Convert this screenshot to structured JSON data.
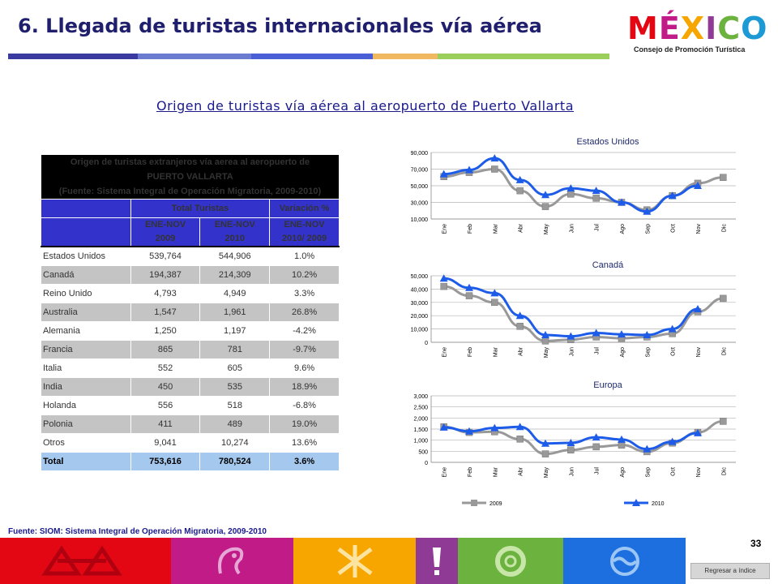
{
  "header": {
    "title": "6. Llegada de turistas internacionales vía aérea",
    "logo_word": "MÉXICO",
    "logo_sub": "Consejo de Promoción Turística",
    "logo_colors": [
      "#e30613",
      "#c11b87",
      "#f7a600",
      "#6cb23e",
      "#1d9ad6",
      "#8f3b96"
    ]
  },
  "subtitle": "Origen de turistas vía aérea al aeropuerto de Puerto Vallarta",
  "table": {
    "title_line1": "Origen de turistas extranjeros vía aerea al aeropuerto de",
    "title_line2": "PUERTO VALLARTA",
    "title_line3": "(Fuente: Sistema Integral de Operación Migratoria, 2009-2010)",
    "group_total": "Total Turistas",
    "group_var": "Variación %",
    "col1_l1": "ENE-NOV",
    "col1_l2": "2009",
    "col2_l1": "ENE-NOV",
    "col2_l2": "2010",
    "col3_l1": "ENE-NOV",
    "col3_l2": "2010/ 2009",
    "rows": [
      {
        "country": "Estados Unidos",
        "v2009": "539,764",
        "v2010": "544,906",
        "var": "1.0%"
      },
      {
        "country": "Canadá",
        "v2009": "194,387",
        "v2010": "214,309",
        "var": "10.2%"
      },
      {
        "country": "Reino Unido",
        "v2009": "4,793",
        "v2010": "4,949",
        "var": "3.3%"
      },
      {
        "country": "Australia",
        "v2009": "1,547",
        "v2010": "1,961",
        "var": "26.8%"
      },
      {
        "country": "Alemania",
        "v2009": "1,250",
        "v2010": "1,197",
        "var": "-4.2%"
      },
      {
        "country": "Francia",
        "v2009": "865",
        "v2010": "781",
        "var": "-9.7%"
      },
      {
        "country": "Italia",
        "v2009": "552",
        "v2010": "605",
        "var": "9.6%"
      },
      {
        "country": "India",
        "v2009": "450",
        "v2010": "535",
        "var": "18.9%"
      },
      {
        "country": "Holanda",
        "v2009": "556",
        "v2010": "518",
        "var": "-6.8%"
      },
      {
        "country": "Polonia",
        "v2009": "411",
        "v2010": "489",
        "var": "19.0%"
      },
      {
        "country": "Otros",
        "v2009": "9,041",
        "v2010": "10,274",
        "var": "13.6%"
      }
    ],
    "total": {
      "country": "Total",
      "v2009": "753,616",
      "v2010": "780,524",
      "var": "3.6%"
    }
  },
  "source": "Fuente: SIOM: Sistema Integral de Operación Migratoria, 2009-2010",
  "page_number": "33",
  "back_button": "Regresar a índice",
  "chart_data": [
    {
      "type": "line",
      "title": "Estados Unidos",
      "categories": [
        "Ene",
        "Feb",
        "Mar",
        "Abr",
        "May",
        "Jun",
        "Jul",
        "Ago",
        "Sep",
        "Oct",
        "Nov",
        "Dic"
      ],
      "ylim": [
        10000,
        90000
      ],
      "yticks": [
        10000,
        30000,
        50000,
        70000,
        90000
      ],
      "ytick_labels": [
        "10,000",
        "30,000",
        "50,000",
        "70,000",
        "90,000"
      ],
      "series": [
        {
          "name": "2009",
          "color": "#999999",
          "marker": "square",
          "values": [
            61000,
            66000,
            70000,
            44000,
            25000,
            40000,
            35000,
            30000,
            21000,
            38000,
            53000,
            60000
          ]
        },
        {
          "name": "2010",
          "color": "#1d5ce8",
          "marker": "triangle",
          "values": [
            64000,
            69000,
            83000,
            57000,
            39000,
            47000,
            44000,
            30000,
            19000,
            38000,
            50000,
            null
          ]
        }
      ]
    },
    {
      "type": "line",
      "title": "Canadá",
      "categories": [
        "Ene",
        "Feb",
        "Mar",
        "Abr",
        "May",
        "Jun",
        "Jul",
        "Ago",
        "Sep",
        "Oct",
        "Nov",
        "Dic"
      ],
      "ylim": [
        0,
        50000
      ],
      "yticks": [
        0,
        10000,
        20000,
        30000,
        40000,
        50000
      ],
      "ytick_labels": [
        "0",
        "10,000",
        "20,000",
        "30,000",
        "40,000",
        "50,000"
      ],
      "series": [
        {
          "name": "2009",
          "color": "#999999",
          "marker": "square",
          "values": [
            42000,
            35000,
            30000,
            12000,
            1000,
            2000,
            4000,
            3000,
            4000,
            6500,
            23000,
            33000
          ]
        },
        {
          "name": "2010",
          "color": "#1d5ce8",
          "marker": "triangle",
          "values": [
            48000,
            41000,
            37000,
            20000,
            5500,
            4500,
            7000,
            6000,
            5500,
            10000,
            25000,
            null
          ]
        }
      ]
    },
    {
      "type": "line",
      "title": "Europa",
      "categories": [
        "Ene",
        "Feb",
        "Mar",
        "Abr",
        "May",
        "Jun",
        "Jul",
        "Ago",
        "Sep",
        "Oct",
        "Nov",
        "Dic"
      ],
      "ylim": [
        0,
        3000
      ],
      "yticks": [
        0,
        500,
        1000,
        1500,
        2000,
        2500,
        3000
      ],
      "ytick_labels": [
        "0",
        "500",
        "1,000",
        "1,500",
        "2,000",
        "2,500",
        "3,000"
      ],
      "series": [
        {
          "name": "2009",
          "color": "#999999",
          "marker": "square",
          "values": [
            1600,
            1350,
            1380,
            1050,
            380,
            560,
            700,
            780,
            480,
            870,
            1350,
            1850
          ]
        },
        {
          "name": "2010",
          "color": "#1d5ce8",
          "marker": "triangle",
          "values": [
            1580,
            1400,
            1550,
            1600,
            850,
            880,
            1130,
            1030,
            600,
            930,
            1320,
            null
          ]
        }
      ],
      "legend": [
        "2009",
        "2010"
      ]
    }
  ]
}
